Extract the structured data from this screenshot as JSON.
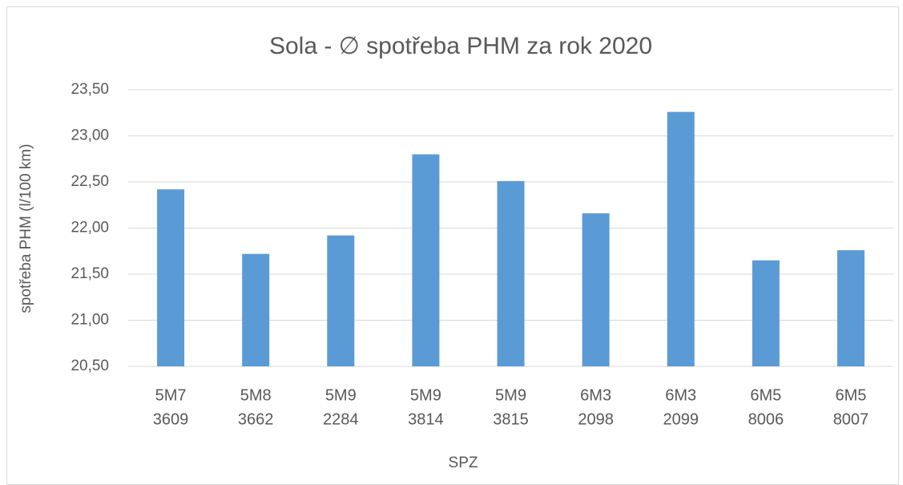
{
  "chart_data": {
    "type": "bar",
    "title": "Sola - ∅ spotřeba PHM za rok 2020",
    "x_label": "SPZ",
    "y_label": "spotřeba PHM (l/100 km)",
    "categories": [
      [
        "5M7",
        "3609"
      ],
      [
        "5M8",
        "3662"
      ],
      [
        "5M9",
        "2284"
      ],
      [
        "5M9",
        "3814"
      ],
      [
        "5M9",
        "3815"
      ],
      [
        "6M3",
        "2098"
      ],
      [
        "6M3",
        "2099"
      ],
      [
        "6M5",
        "8006"
      ],
      [
        "6M5",
        "8007"
      ]
    ],
    "values": [
      22.42,
      21.72,
      21.92,
      22.8,
      22.51,
      22.16,
      23.26,
      21.65,
      21.76
    ],
    "color": "#5b9bd5",
    "ylim": [
      20.5,
      23.5
    ],
    "yticks": [
      {
        "value": 20.5,
        "label": "20,50"
      },
      {
        "value": 21,
        "label": "21,00"
      },
      {
        "value": 21.5,
        "label": "21,50"
      },
      {
        "value": 22,
        "label": "22,00"
      },
      {
        "value": 22.5,
        "label": "22,50"
      },
      {
        "value": 23,
        "label": "23,00"
      },
      {
        "value": 23.5,
        "label": "23,50"
      }
    ],
    "grid": true
  }
}
